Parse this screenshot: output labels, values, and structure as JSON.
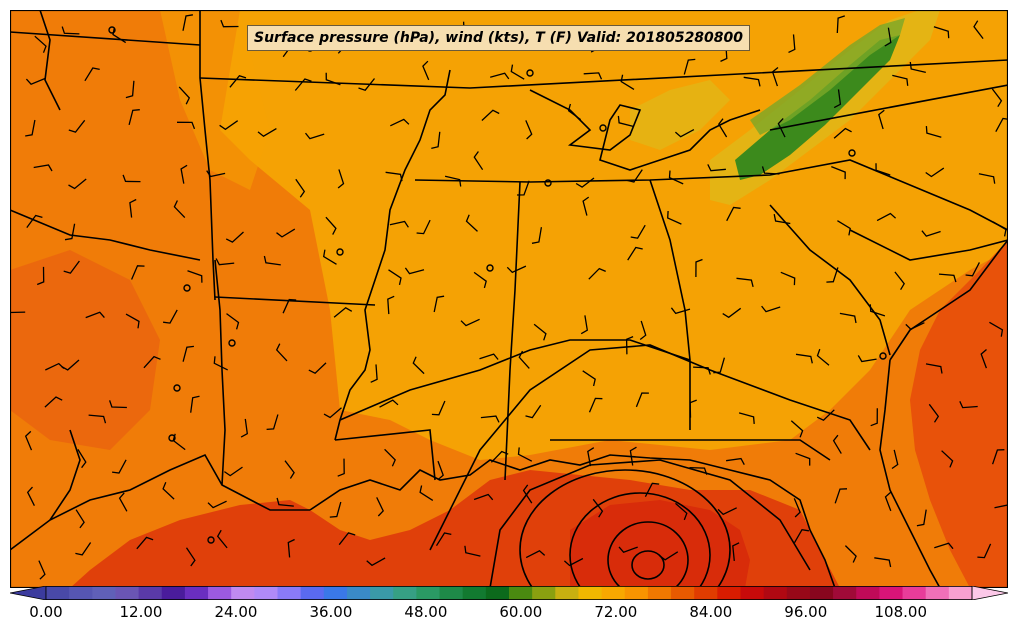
{
  "title": "Surface pressure (hPa), wind (kts), T (F) Valid: 201805280800",
  "colorbar": {
    "min": 0,
    "max": 117,
    "tick_labels": [
      "0.00",
      "12.00",
      "24.00",
      "36.00",
      "48.00",
      "60.00",
      "72.00",
      "84.00",
      "96.00",
      "108.00"
    ],
    "colors": [
      "#3b3b9e",
      "#4949a8",
      "#5656b2",
      "#6060b8",
      "#6a55b4",
      "#5a3aa8",
      "#4a1c9c",
      "#6a2ec0",
      "#9c5ae0",
      "#c08af0",
      "#b08af8",
      "#8a7af8",
      "#5a6af0",
      "#3a78e8",
      "#3a8ac8",
      "#3a9aa8",
      "#36a084",
      "#2a9a64",
      "#1e8a48",
      "#127a30",
      "#0c6a1c",
      "#4a8a10",
      "#8aa010",
      "#c8b010",
      "#f0b800",
      "#f8a800",
      "#f89400",
      "#f07800",
      "#e85a00",
      "#e03c00",
      "#d81c00",
      "#c80a0a",
      "#b00812",
      "#980818",
      "#88061e",
      "#a00a38",
      "#c00a58",
      "#d81478",
      "#e83c9a",
      "#f070b8",
      "#f8a0d0",
      "#fcc8e8"
    ]
  },
  "map": {
    "base_temp_color": "#f07c08",
    "warm_color": "#e04c0a",
    "cool_color": "#f5a204",
    "mountain_color": "#e4b414",
    "forest_color": "#3c8a1c",
    "border_color": "#000000",
    "station_labels": []
  }
}
